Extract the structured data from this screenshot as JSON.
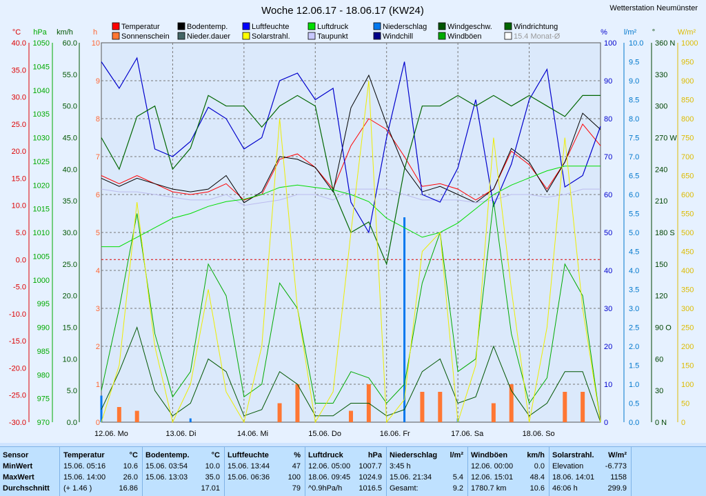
{
  "title": "Woche 12.06.17 - 18.06.17 (KW24)",
  "station": "Wetterstation Neumünster",
  "legend": [
    {
      "label": "Temperatur",
      "color": "#ff0000"
    },
    {
      "label": "Bodentemp.",
      "color": "#000000"
    },
    {
      "label": "Luftfeuchte",
      "color": "#0000ff"
    },
    {
      "label": "Luftdruck",
      "color": "#00dd00"
    },
    {
      "label": "Niederschlag",
      "color": "#0077ee"
    },
    {
      "label": "Windgeschw.",
      "color": "#005500"
    },
    {
      "label": "Windrichtung",
      "color": "#006600"
    },
    {
      "label": "Sonnenschein",
      "color": "#ff7733"
    },
    {
      "label": "Nieder.dauer",
      "color": "#446666"
    },
    {
      "label": "Solarstrahl.",
      "color": "#ffff00"
    },
    {
      "label": "Taupunkt",
      "color": "#c8c8ff"
    },
    {
      "label": "Windchill",
      "color": "#000088"
    },
    {
      "label": "Windböen",
      "color": "#00aa00"
    },
    {
      "label": "15.4 Monat-Ø",
      "color": "#ffffff"
    }
  ],
  "axes": {
    "temp": {
      "unit": "°C",
      "ticks": [
        "40.0",
        "35.0",
        "30.0",
        "25.0",
        "20.0",
        "15.0",
        "10.0",
        "5.0",
        "0.0",
        "-5.0",
        "-10.0",
        "-15.0",
        "-20.0",
        "-25.0",
        "-30.0"
      ]
    },
    "press": {
      "unit": "hPa",
      "ticks": [
        "1050",
        "1045",
        "1040",
        "1035",
        "1030",
        "1025",
        "1020",
        "1015",
        "1010",
        "1005",
        "1000",
        "995",
        "990",
        "985",
        "980",
        "975",
        "970"
      ]
    },
    "wind": {
      "unit": "km/h",
      "ticks": [
        "60.0",
        "55.0",
        "50.0",
        "45.0",
        "40.0",
        "35.0",
        "30.0",
        "25.0",
        "20.0",
        "15.0",
        "10.0",
        "5.0",
        "0.0"
      ]
    },
    "sun": {
      "unit": "h",
      "ticks": [
        "10",
        "9",
        "8",
        "7",
        "6",
        "5",
        "4",
        "3",
        "2",
        "1",
        "0"
      ]
    },
    "hum": {
      "unit": "%",
      "ticks": [
        "100",
        "90",
        "80",
        "70",
        "60",
        "50",
        "40",
        "30",
        "20",
        "10",
        "0"
      ]
    },
    "rain": {
      "unit": "l/m²",
      "ticks": [
        "10.0",
        "9.5",
        "9.0",
        "8.5",
        "8.0",
        "7.5",
        "7.0",
        "6.5",
        "6.0",
        "5.5",
        "5.0",
        "4.5",
        "4.0",
        "3.5",
        "3.0",
        "2.5",
        "2.0",
        "1.5",
        "1.0",
        "0.5",
        "0.0"
      ]
    },
    "dir": {
      "unit": "°",
      "ticks": [
        "360 N",
        "330",
        "300",
        "270 W",
        "240",
        "210",
        "180 S",
        "150",
        "120",
        "90 O",
        "60",
        "30",
        "0 N"
      ]
    },
    "solar": {
      "unit": "W/m²",
      "ticks": [
        "1000",
        "950",
        "900",
        "850",
        "800",
        "750",
        "700",
        "650",
        "600",
        "550",
        "500",
        "450",
        "400",
        "350",
        "300",
        "250",
        "200",
        "150",
        "100",
        "50",
        "0"
      ]
    }
  },
  "days": [
    "12.06. Mo",
    "13.06. Di",
    "14.06. Mi",
    "15.06. Do",
    "16.06. Fr",
    "17.06. Sa",
    "18.06. So"
  ],
  "chart_data": {
    "type": "line",
    "x": [
      "12.06. 00:00",
      "12.06. 06:00",
      "12.06. 12:00",
      "12.06. 18:00",
      "13.06. 00:00",
      "13.06. 06:00",
      "13.06. 12:00",
      "13.06. 18:00",
      "14.06. 00:00",
      "14.06. 06:00",
      "14.06. 12:00",
      "14.06. 18:00",
      "15.06. 00:00",
      "15.06. 06:00",
      "15.06. 12:00",
      "15.06. 18:00",
      "16.06. 00:00",
      "16.06. 06:00",
      "16.06. 12:00",
      "16.06. 18:00",
      "17.06. 00:00",
      "17.06. 06:00",
      "17.06. 12:00",
      "17.06. 18:00",
      "18.06. 00:00",
      "18.06. 06:00",
      "18.06. 12:00",
      "18.06. 18:00",
      "19.06. 00:00"
    ],
    "series": [
      {
        "name": "Temperatur",
        "axis": "°C",
        "values": [
          15.5,
          14,
          15.5,
          14,
          12.5,
          12,
          12.5,
          14,
          11,
          12,
          18.5,
          19.5,
          17,
          13,
          21,
          26,
          24,
          19,
          13.5,
          14,
          13,
          11,
          13,
          20,
          17.5,
          13,
          18,
          25,
          21
        ]
      },
      {
        "name": "Bodentemp.",
        "axis": "°C",
        "values": [
          15,
          13.5,
          15,
          14,
          13,
          12.5,
          13,
          15.5,
          10.5,
          12.5,
          19,
          18.5,
          17,
          12.5,
          28,
          34,
          25,
          17,
          12.5,
          13.5,
          12,
          10.5,
          13,
          20.5,
          18,
          12.5,
          18,
          27,
          24
        ]
      },
      {
        "name": "Taupunkt",
        "axis": "°C",
        "values": [
          13,
          12.5,
          12.5,
          12,
          11.5,
          11,
          11,
          12,
          10,
          10.5,
          11,
          12,
          12,
          11,
          13,
          13,
          13,
          12,
          11,
          11,
          11,
          10.5,
          11,
          12,
          12,
          11.5,
          12,
          13,
          13
        ]
      },
      {
        "name": "Luftfeuchte",
        "axis": "%",
        "values": [
          95,
          88,
          96,
          72,
          70,
          74,
          83,
          80,
          72,
          75,
          90,
          92,
          85,
          88,
          58,
          50,
          75,
          95,
          60,
          58,
          67,
          85,
          57,
          68,
          85,
          93,
          62,
          65,
          78
        ]
      },
      {
        "name": "Luftdruck",
        "axis": "hPa",
        "values": [
          1007,
          1007,
          1009,
          1011,
          1013,
          1014,
          1015.5,
          1016.5,
          1017,
          1018,
          1019.5,
          1020,
          1019.5,
          1019,
          1018,
          1016.5,
          1013,
          1011,
          1009,
          1010,
          1012,
          1015,
          1018,
          1020,
          1021.5,
          1023,
          1024,
          1024,
          1024
        ]
      },
      {
        "name": "Windgeschw.",
        "axis": "km/h",
        "values": [
          2,
          8,
          15,
          5,
          1,
          3,
          10,
          8,
          1,
          2,
          8,
          6,
          1,
          1,
          3,
          3,
          1,
          2,
          8,
          10,
          3,
          4,
          12,
          5,
          1,
          3,
          8,
          8,
          0
        ]
      },
      {
        "name": "Windböen",
        "axis": "km/h",
        "values": [
          5,
          18,
          33,
          14,
          4,
          8,
          25,
          20,
          4,
          6,
          22,
          18,
          3,
          3,
          8,
          7,
          3,
          6,
          22,
          30,
          8,
          10,
          35,
          14,
          3,
          7,
          25,
          20,
          0
        ]
      },
      {
        "name": "Windrichtung",
        "axis": "°",
        "values": [
          270,
          240,
          290,
          300,
          240,
          260,
          310,
          300,
          300,
          280,
          300,
          310,
          300,
          220,
          180,
          190,
          150,
          240,
          300,
          300,
          310,
          300,
          310,
          300,
          310,
          300,
          290,
          310,
          310
        ]
      },
      {
        "name": "Solarstrahl.",
        "axis": "W/m²",
        "values": [
          0,
          150,
          580,
          200,
          0,
          100,
          350,
          80,
          0,
          200,
          800,
          300,
          0,
          80,
          500,
          900,
          0,
          60,
          450,
          500,
          0,
          150,
          750,
          350,
          0,
          250,
          750,
          300,
          0
        ]
      },
      {
        "name": "Niederschlag",
        "axis": "l/m²",
        "values": [
          0.7,
          0.2,
          0.1,
          0,
          0,
          0.1,
          0,
          0,
          0,
          0,
          0,
          0,
          0,
          0,
          0,
          0,
          0,
          5.4,
          0.1,
          0.5,
          0.1,
          0,
          0,
          0,
          0,
          0,
          0,
          0,
          0
        ]
      },
      {
        "name": "Sonnenschein",
        "axis": "h",
        "values": [
          0,
          0.4,
          0.3,
          0,
          0,
          0,
          0,
          0,
          0,
          0,
          0.5,
          1.0,
          0,
          0,
          0.3,
          1.0,
          0,
          0,
          0.8,
          0.8,
          0,
          0,
          0.5,
          1.0,
          0,
          0,
          0.8,
          0.8,
          0
        ]
      }
    ],
    "ylim_temp": [
      -30,
      40
    ],
    "ylim_press": [
      970,
      1050
    ],
    "ylim_wind": [
      0,
      60
    ],
    "ylim_sun": [
      0,
      10
    ],
    "ylim_hum": [
      0,
      100
    ],
    "ylim_rain": [
      0,
      10
    ],
    "ylim_dir": [
      0,
      360
    ],
    "ylim_solar": [
      0,
      1000
    ],
    "grid": true
  },
  "stats": {
    "row_labels": [
      "Sensor",
      "MinWert",
      "MaxWert",
      "Durchschnitt"
    ],
    "columns": [
      {
        "name": "Temperatur",
        "unit": "°C",
        "rows": [
          [
            "15.06.  05:16",
            "10.6"
          ],
          [
            "15.06.  14:00",
            "26.0"
          ],
          [
            "(+ 1.46 )",
            "16.86"
          ]
        ]
      },
      {
        "name": "Bodentemp.",
        "unit": "°C",
        "rows": [
          [
            "15.06.  03:54",
            "10.0"
          ],
          [
            "15.06.  13:03",
            "35.0"
          ],
          [
            "",
            "17.01"
          ]
        ]
      },
      {
        "name": "Luftfeuchte",
        "unit": "%",
        "rows": [
          [
            "15.06.  13:44",
            "47"
          ],
          [
            "15.06.  06:36",
            "100"
          ],
          [
            "",
            "79"
          ]
        ]
      },
      {
        "name": "Luftdruck",
        "unit": "hPa",
        "rows": [
          [
            "12.06.  05:00",
            "1007.7"
          ],
          [
            "18.06.  09:45",
            "1024.9"
          ],
          [
            "^0.9hPa/h",
            "1016.5"
          ]
        ]
      },
      {
        "name": "Niederschlag",
        "unit": "l/m²",
        "rows": [
          [
            "3:45 h",
            ""
          ],
          [
            "15.06.  21:34",
            "5.4"
          ],
          [
            "Gesamt:",
            "9.2"
          ]
        ]
      },
      {
        "name": "Windböen",
        "unit": "km/h",
        "rows": [
          [
            "12.06.  00:00",
            "0.0"
          ],
          [
            "12.06.  15:01",
            "48.4"
          ],
          [
            "1780.7 km",
            "10.6"
          ]
        ]
      },
      {
        "name": "Solarstrahl.",
        "unit": "W/m²",
        "rows": [
          [
            "Elevation",
            "-6.773"
          ],
          [
            "18.06.  14:01",
            "1158"
          ],
          [
            "46:06 h",
            "299.9"
          ]
        ]
      }
    ]
  }
}
